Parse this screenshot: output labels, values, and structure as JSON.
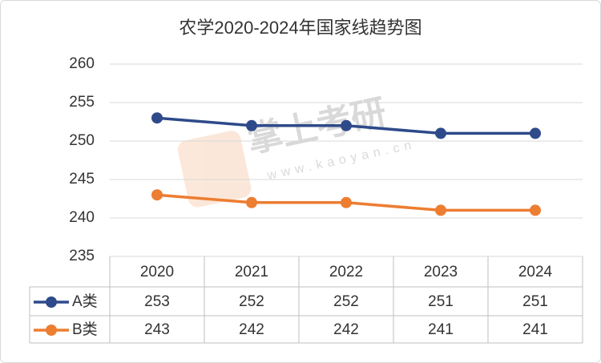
{
  "chart_data": {
    "type": "line",
    "title": "农学2020-2024年国家线趋势图",
    "categories": [
      "2020",
      "2021",
      "2022",
      "2023",
      "2024"
    ],
    "series": [
      {
        "name": "A类",
        "color": "#2e4a8a",
        "values": [
          253,
          252,
          252,
          251,
          251
        ]
      },
      {
        "name": "B类",
        "color": "#ed7d31",
        "values": [
          243,
          242,
          242,
          241,
          241
        ]
      }
    ],
    "ylim": [
      235,
      260
    ],
    "yticks": [
      235,
      240,
      245,
      250,
      255,
      260
    ],
    "grid": true,
    "data_table": true,
    "watermark": {
      "text": "掌上考研",
      "url": "www.kaoyan.cn"
    }
  }
}
